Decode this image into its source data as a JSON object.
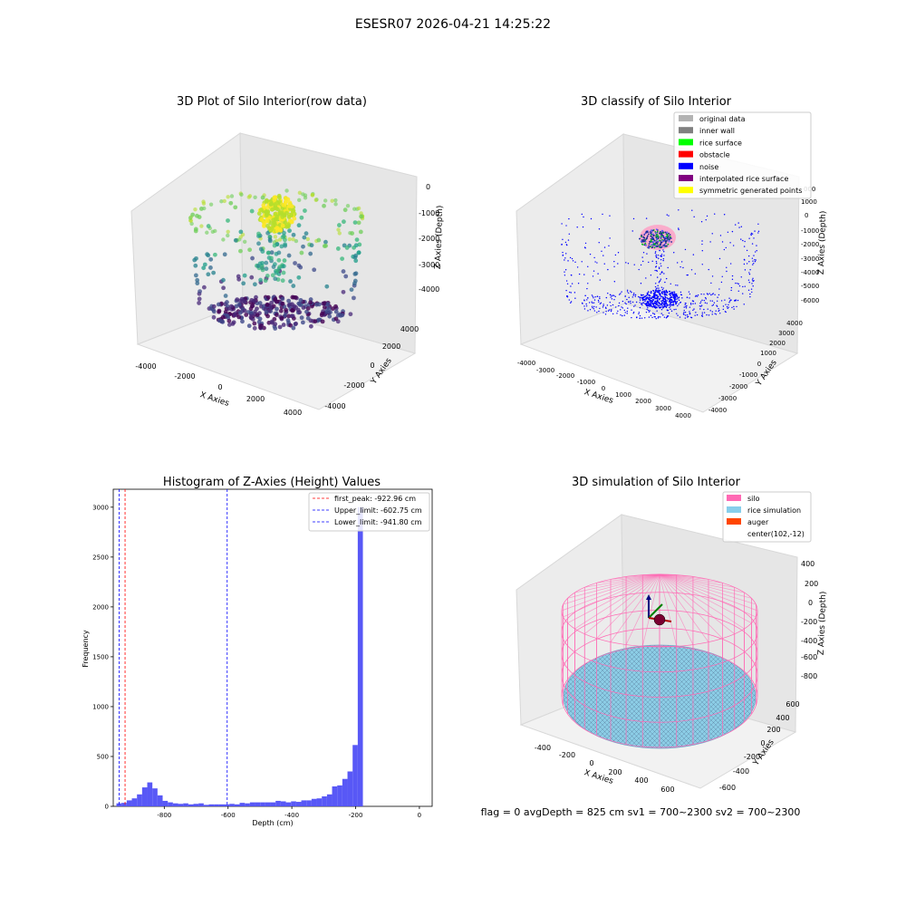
{
  "figure": {
    "suptitle": "ESESR07 2026-04-21 14:25:22",
    "status_line": "flag = 0     avgDepth = 825 cm  sv1 = 700~2300  sv2 = 700~2300"
  },
  "chart_data": [
    {
      "type": "scatter",
      "projection": "3d",
      "title": "3D Plot of Silo Interior(row data)",
      "xlabel": "X Axies",
      "ylabel": "Y Axies",
      "zlabel": "Z Axies (Depth)",
      "x_ticks": [
        "-4000",
        "-2000",
        "0",
        "2000",
        "4000"
      ],
      "y_ticks": [
        "-4000",
        "-2000",
        "0",
        "2000",
        "4000"
      ],
      "z_ticks": [
        "0",
        "-1000",
        "-2000",
        "-3000",
        "-4000"
      ],
      "xlim": [
        -4500,
        4500
      ],
      "ylim": [
        -4500,
        4500
      ],
      "zlim": [
        -4500,
        500
      ],
      "colormap": "viridis (by depth)",
      "points": "ring of wall points from z≈-1000 to z≈-3000, dense yellow cluster near center at z≈-1000, dark purple bowl at bottom z≈-4000"
    },
    {
      "type": "scatter",
      "projection": "3d",
      "title": "3D classify of Silo Interior",
      "xlabel": "X Axies",
      "ylabel": "Y Axies",
      "zlabel": "Z Axies (Depth)",
      "x_ticks": [
        "-4000",
        "-3000",
        "-2000",
        "-1000",
        "0",
        "1000",
        "2000",
        "3000",
        "4000"
      ],
      "y_ticks": [
        "-4000",
        "-3000",
        "-2000",
        "-1000",
        "0",
        "1000",
        "2000",
        "3000",
        "4000"
      ],
      "z_ticks": [
        "1000",
        "0",
        "-1000",
        "-2000",
        "-3000",
        "-4000",
        "-5000",
        "-6000"
      ],
      "z_top_partial": "000",
      "legend": [
        {
          "name": "original data",
          "color": "#b3b3b3"
        },
        {
          "name": "inner wall",
          "color": "#808080"
        },
        {
          "name": "rice surface",
          "color": "#00ff00"
        },
        {
          "name": "obstacle",
          "color": "#ff0000"
        },
        {
          "name": "noise",
          "color": "#0000ff"
        },
        {
          "name": "interpolated rice surface",
          "color": "#800080"
        },
        {
          "name": "symmetric generated points",
          "color": "#ffff00"
        }
      ],
      "legend_loc": "upper right"
    },
    {
      "type": "bar",
      "title": "Histogram of Z-Axies (Height) Values",
      "xlabel": "Depth (cm)",
      "ylabel": "Frequency",
      "xlim": [
        -960,
        40
      ],
      "ylim": [
        0,
        3180
      ],
      "x_ticks": [
        -800,
        -600,
        -400,
        -200,
        0
      ],
      "y_ticks": [
        0,
        500,
        1000,
        1500,
        2000,
        2500,
        3000
      ],
      "bar_color": "#4f4ff5",
      "bin_edges_start": -950,
      "bin_width": 16.1,
      "counts": [
        30,
        35,
        60,
        80,
        120,
        190,
        240,
        180,
        110,
        55,
        40,
        30,
        25,
        30,
        20,
        25,
        30,
        15,
        20,
        20,
        20,
        20,
        25,
        20,
        35,
        30,
        40,
        40,
        40,
        40,
        40,
        55,
        50,
        40,
        50,
        45,
        60,
        60,
        75,
        80,
        100,
        120,
        200,
        210,
        275,
        350,
        615,
        3000
      ],
      "vlines": [
        {
          "label": "first_peak: -922.96 cm",
          "x": -922.96,
          "color": "#ff0000"
        },
        {
          "label": "Upper_limit: -602.75 cm",
          "x": -602.75,
          "color": "#0000ff"
        },
        {
          "label": "Lower_limit: -941.80 cm",
          "x": -941.8,
          "color": "#0000ff"
        }
      ],
      "legend_loc": "upper right"
    },
    {
      "type": "surface",
      "projection": "3d",
      "title": "3D simulation of Silo Interior",
      "xlabel": "X Axies",
      "ylabel": "Y Axies",
      "zlabel": "Z Axies (Depth)",
      "x_ticks": [
        "-400",
        "-200",
        "0",
        "200",
        "400",
        "600"
      ],
      "y_ticks": [
        "-600",
        "-400",
        "-200",
        "0",
        "200",
        "400",
        "600"
      ],
      "z_ticks": [
        "400",
        "200",
        "0",
        "-200",
        "-400",
        "-600",
        "-800"
      ],
      "legend": [
        {
          "name": "silo",
          "color": "#ff69b4"
        },
        {
          "name": "rice simulation",
          "color": "#87ceeb"
        },
        {
          "name": "auger",
          "color": "#ff4500"
        },
        {
          "name": "center(102,-12)",
          "color": "none"
        }
      ],
      "legend_loc": "upper right"
    }
  ]
}
